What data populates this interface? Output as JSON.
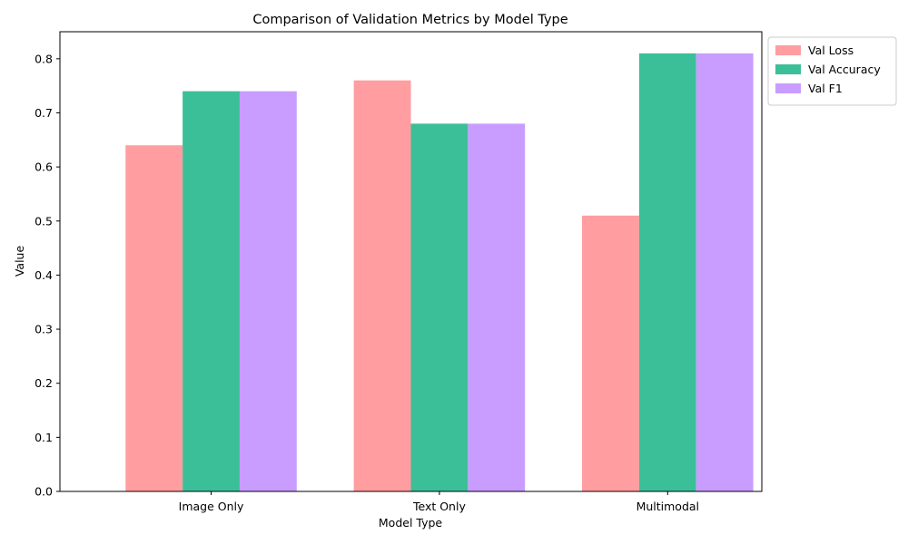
{
  "chart_data": {
    "type": "bar",
    "title": "Comparison of Validation Metrics by Model Type",
    "xlabel": "Model Type",
    "ylabel": "Value",
    "categories": [
      "Image Only",
      "Text Only",
      "Multimodal"
    ],
    "series": [
      {
        "name": "Val Loss",
        "values": [
          0.64,
          0.76,
          0.51
        ],
        "color": "#ff9da0"
      },
      {
        "name": "Val Accuracy",
        "values": [
          0.74,
          0.68,
          0.81
        ],
        "color": "#3bbf98"
      },
      {
        "name": "Val F1",
        "values": [
          0.74,
          0.68,
          0.81
        ],
        "color": "#c89dff"
      }
    ],
    "ylim": [
      0,
      0.85
    ],
    "yticks": [
      "0.0",
      "0.1",
      "0.2",
      "0.3",
      "0.4",
      "0.5",
      "0.6",
      "0.7",
      "0.8"
    ],
    "grid": false,
    "legend_position": "outside-top-right"
  }
}
